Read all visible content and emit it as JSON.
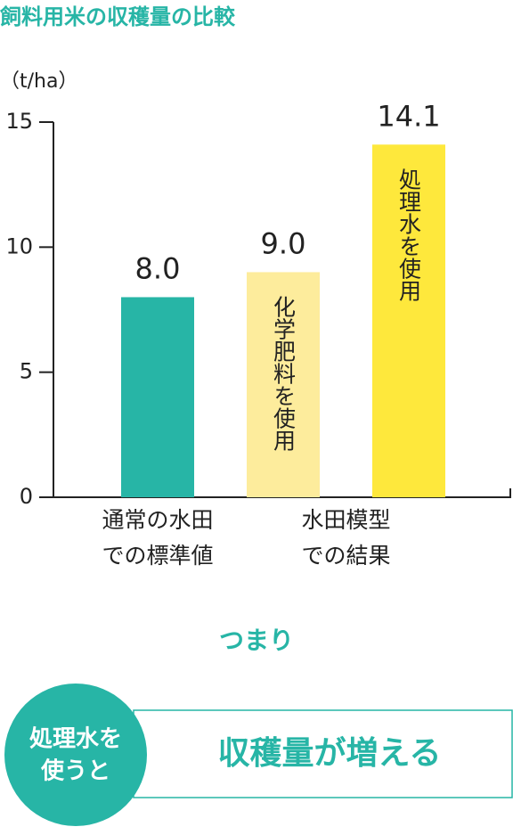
{
  "chart_data": {
    "type": "bar",
    "title": "飼料用米の収穫量の比較",
    "y_unit": "（t/ha）",
    "categories": [
      null,
      "化学肥料を使用",
      "処理水を使用"
    ],
    "values": [
      8.0,
      9.0,
      14.1
    ],
    "value_labels": [
      "8.0",
      "9.0",
      "14.1"
    ],
    "colors": [
      "#27b5a6",
      "#fdec9c",
      "#fee83c"
    ],
    "groups": [
      {
        "lines": [
          "通常の水田",
          "での標準値"
        ]
      },
      {
        "lines": [
          "水田模型",
          "での結果"
        ]
      }
    ],
    "ylim": [
      0,
      15
    ],
    "yticks": [
      0,
      5,
      10,
      15
    ]
  },
  "summary": {
    "connector": "つまり",
    "badge_lines": [
      "処理水を",
      "使うと"
    ],
    "result": "収穫量が増える"
  }
}
